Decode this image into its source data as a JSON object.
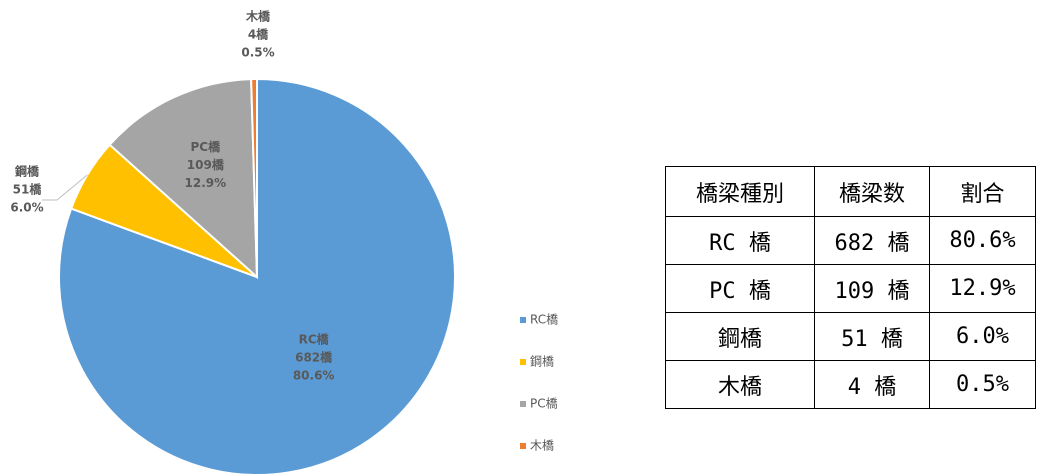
{
  "chart_data": {
    "type": "pie",
    "categories": [
      "RC橋",
      "鋼橋",
      "PC橋",
      "木橋"
    ],
    "values": [
      682,
      51,
      109,
      4
    ],
    "value_labels": [
      "682橋",
      "51橋",
      "109橋",
      "4橋"
    ],
    "percent_labels": [
      "80.6%",
      "6.0%",
      "12.9%",
      "0.5%"
    ],
    "colors": [
      "#5b9bd5",
      "#ffc000",
      "#a5a5a5",
      "#ed7d31"
    ],
    "legend": "right"
  },
  "table": {
    "header": [
      "橋梁種別",
      "橋梁数",
      "割合"
    ],
    "rows": [
      [
        "RC 橋",
        "682 橋",
        "80.6%"
      ],
      [
        "PC 橋",
        "109 橋",
        "12.9%"
      ],
      [
        "鋼橋",
        "51 橋",
        "6.0%"
      ],
      [
        "木橋",
        "4 橋",
        "0.5%"
      ]
    ]
  }
}
